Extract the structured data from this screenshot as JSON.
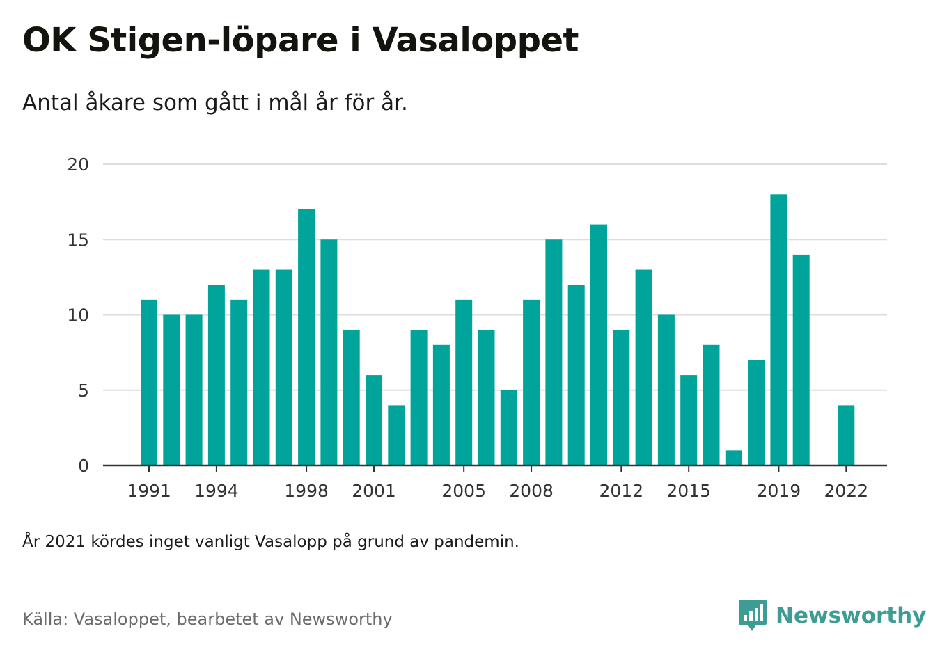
{
  "title": "OK Stigen-löpare i Vasaloppet",
  "subtitle": "Antal åkare som gått i mål år för år.",
  "note": "År 2021 kördes inget vanligt Vasalopp på grund av pandemin.",
  "source": "Källa: Vasaloppet, bearbetet av Newsworthy",
  "brand": {
    "name": "Newsworthy",
    "icon": "newsworthy-logo-icon",
    "color": "#3d9c93"
  },
  "chart_data": {
    "type": "bar",
    "x": [
      1991,
      1992,
      1993,
      1994,
      1995,
      1996,
      1997,
      1998,
      1999,
      2000,
      2001,
      2002,
      2003,
      2004,
      2005,
      2006,
      2007,
      2008,
      2009,
      2010,
      2011,
      2012,
      2013,
      2014,
      2015,
      2016,
      2017,
      2018,
      2019,
      2020,
      2021,
      2022
    ],
    "values": [
      11,
      10,
      10,
      12,
      11,
      13,
      13,
      17,
      15,
      9,
      6,
      4,
      9,
      8,
      11,
      9,
      5,
      11,
      15,
      12,
      16,
      9,
      13,
      10,
      6,
      8,
      1,
      7,
      18,
      14,
      null,
      4
    ],
    "x_ticks": [
      "1991",
      "1994",
      "1998",
      "2001",
      "2005",
      "2008",
      "2012",
      "2015",
      "2019",
      "2022"
    ],
    "y_ticks": [
      "0",
      "5",
      "10",
      "15",
      "20"
    ],
    "ylim": [
      0,
      20
    ],
    "xlabel": "",
    "ylabel": "",
    "grid": true,
    "bar_color": "#00a49a",
    "grid_color": "#dddddd",
    "axis_color": "#333333"
  }
}
